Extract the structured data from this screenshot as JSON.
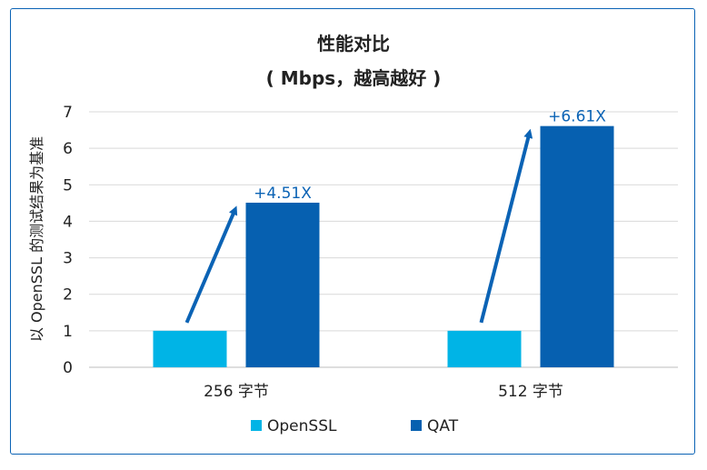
{
  "chart_data": {
    "type": "bar",
    "title": "性能对比",
    "subtitle": "( Mbps，越高越好 )",
    "ylabel": "以 OpenSSL 的测试结果为基准",
    "xlabel": "",
    "categories": [
      "256 字节",
      "512 字节"
    ],
    "series": [
      {
        "name": "OpenSSL",
        "values": [
          1,
          1
        ],
        "color": "#00b4e6"
      },
      {
        "name": "QAT",
        "values": [
          4.51,
          6.61
        ],
        "color": "#0660b0"
      }
    ],
    "ylim": [
      0,
      7
    ],
    "yticks": [
      "0",
      "1",
      "2",
      "3",
      "4",
      "5",
      "6",
      "7"
    ],
    "annotations": [
      "+4.51X",
      "+6.61X"
    ],
    "grid": "horizontal",
    "legend_position": "bottom"
  }
}
